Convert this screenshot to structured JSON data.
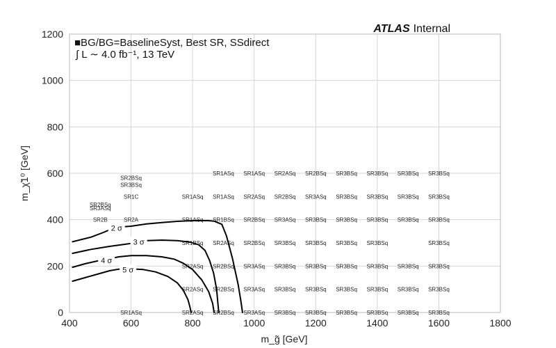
{
  "chart_data": {
    "type": "scatter",
    "title": "",
    "xlabel": "m_g̃ [GeV]",
    "ylabel": "m_χ̃1⁰ [GeV]",
    "xlim": [
      400,
      1800
    ],
    "ylim": [
      0,
      1200
    ],
    "xticks": [
      400,
      600,
      800,
      1000,
      1200,
      1400,
      1600,
      1800
    ],
    "yticks": [
      0,
      200,
      400,
      600,
      800,
      1000,
      1200
    ],
    "grid": true,
    "atlas": {
      "bold": "ATLAS",
      "rest": "Internal"
    },
    "annotation_line1": "■BG/BG=BaselineSyst, Best SR, SSdirect",
    "annotation_line2": "∫ L ∼ 4.0 fb⁻¹, 13 TeV",
    "points": [
      {
        "x": 600,
        "y": 0,
        "label": "SR1ASq"
      },
      {
        "x": 800,
        "y": 0,
        "label": "SR2ASq"
      },
      {
        "x": 900,
        "y": 0,
        "label": "SR2BSq"
      },
      {
        "x": 1000,
        "y": 0,
        "label": "SR3ASq"
      },
      {
        "x": 1100,
        "y": 0,
        "label": "SR3BSq"
      },
      {
        "x": 1200,
        "y": 0,
        "label": "SR3BSq"
      },
      {
        "x": 1300,
        "y": 0,
        "label": "SR3BSq"
      },
      {
        "x": 1400,
        "y": 0,
        "label": "SR3BSq"
      },
      {
        "x": 1500,
        "y": 0,
        "label": "SR3BSq"
      },
      {
        "x": 1600,
        "y": 0,
        "label": "SR3BSq"
      },
      {
        "x": 800,
        "y": 100,
        "label": "SR2ASq"
      },
      {
        "x": 900,
        "y": 100,
        "label": "SR2BSq"
      },
      {
        "x": 1000,
        "y": 100,
        "label": "SR3ASq"
      },
      {
        "x": 1100,
        "y": 100,
        "label": "SR3BSq"
      },
      {
        "x": 1200,
        "y": 100,
        "label": "SR3BSq"
      },
      {
        "x": 1300,
        "y": 100,
        "label": "SR3BSq"
      },
      {
        "x": 1400,
        "y": 100,
        "label": "SR3BSq"
      },
      {
        "x": 1500,
        "y": 100,
        "label": "SR3BSq"
      },
      {
        "x": 1600,
        "y": 100,
        "label": "SR3BSq"
      },
      {
        "x": 800,
        "y": 200,
        "label": "SR2ASq"
      },
      {
        "x": 900,
        "y": 200,
        "label": "SR2BSq"
      },
      {
        "x": 1000,
        "y": 200,
        "label": "SR3ASq"
      },
      {
        "x": 1100,
        "y": 200,
        "label": "SR3BSq"
      },
      {
        "x": 1200,
        "y": 200,
        "label": "SR3BSq"
      },
      {
        "x": 1300,
        "y": 200,
        "label": "SR3BSq"
      },
      {
        "x": 1400,
        "y": 200,
        "label": "SR3BSq"
      },
      {
        "x": 1500,
        "y": 200,
        "label": "SR3BSq"
      },
      {
        "x": 1600,
        "y": 200,
        "label": "SR3BSq"
      },
      {
        "x": 800,
        "y": 300,
        "label": "SR1BSq"
      },
      {
        "x": 900,
        "y": 300,
        "label": "SR2ASq"
      },
      {
        "x": 1000,
        "y": 300,
        "label": "SR2BSq"
      },
      {
        "x": 1100,
        "y": 300,
        "label": "SR3BSq"
      },
      {
        "x": 1200,
        "y": 300,
        "label": "SR3BSq"
      },
      {
        "x": 1300,
        "y": 300,
        "label": "SR3BSq"
      },
      {
        "x": 1400,
        "y": 300,
        "label": "SR3BSq"
      },
      {
        "x": 1600,
        "y": 300,
        "label": "SR3BSq"
      },
      {
        "x": 500,
        "y": 400,
        "label": "SR2B"
      },
      {
        "x": 600,
        "y": 400,
        "label": "SR2A"
      },
      {
        "x": 800,
        "y": 400,
        "label": "SR1ASq"
      },
      {
        "x": 900,
        "y": 400,
        "label": "SR1BSq"
      },
      {
        "x": 1000,
        "y": 400,
        "label": "SR2BSq"
      },
      {
        "x": 1100,
        "y": 400,
        "label": "SR3ASq"
      },
      {
        "x": 1200,
        "y": 400,
        "label": "SR3BSq"
      },
      {
        "x": 1300,
        "y": 400,
        "label": "SR3BSq"
      },
      {
        "x": 1400,
        "y": 400,
        "label": "SR3BSq"
      },
      {
        "x": 1500,
        "y": 400,
        "label": "SR3BSq"
      },
      {
        "x": 1600,
        "y": 400,
        "label": "SR3BSq"
      },
      {
        "x": 500,
        "y": 465,
        "label": "SR2BSq"
      },
      {
        "x": 500,
        "y": 450,
        "label": "SR3ASq"
      },
      {
        "x": 600,
        "y": 500,
        "label": "SR1C"
      },
      {
        "x": 800,
        "y": 500,
        "label": "SR1ASq"
      },
      {
        "x": 900,
        "y": 500,
        "label": "SR1ASq"
      },
      {
        "x": 1000,
        "y": 500,
        "label": "SR2ASq"
      },
      {
        "x": 1100,
        "y": 500,
        "label": "SR2BSq"
      },
      {
        "x": 1200,
        "y": 500,
        "label": "SR3ASq"
      },
      {
        "x": 1300,
        "y": 500,
        "label": "SR3BSq"
      },
      {
        "x": 1400,
        "y": 500,
        "label": "SR3BSq"
      },
      {
        "x": 1500,
        "y": 500,
        "label": "SR3BSq"
      },
      {
        "x": 1600,
        "y": 500,
        "label": "SR3BSq"
      },
      {
        "x": 600,
        "y": 580,
        "label": "SR2BSq"
      },
      {
        "x": 600,
        "y": 550,
        "label": "SR3BSq"
      },
      {
        "x": 900,
        "y": 600,
        "label": "SR1ASq"
      },
      {
        "x": 1000,
        "y": 600,
        "label": "SR1ASq"
      },
      {
        "x": 1100,
        "y": 600,
        "label": "SR2ASq"
      },
      {
        "x": 1200,
        "y": 600,
        "label": "SR2BSq"
      },
      {
        "x": 1300,
        "y": 600,
        "label": "SR3BSq"
      },
      {
        "x": 1400,
        "y": 600,
        "label": "SR3BSq"
      },
      {
        "x": 1500,
        "y": 600,
        "label": "SR3BSq"
      },
      {
        "x": 1600,
        "y": 600,
        "label": "SR3BSq"
      }
    ],
    "contours": [
      {
        "name": "2 σ",
        "label_at": [
          553,
          365
        ],
        "points": [
          [
            410,
            305
          ],
          [
            470,
            325
          ],
          [
            510,
            345
          ],
          [
            540,
            362
          ],
          [
            560,
            368
          ],
          [
            600,
            372
          ],
          [
            650,
            382
          ],
          [
            700,
            388
          ],
          [
            750,
            393
          ],
          [
            800,
            396
          ],
          [
            850,
            396
          ],
          [
            870,
            394
          ],
          [
            895,
            380
          ],
          [
            910,
            330
          ],
          [
            930,
            230
          ],
          [
            948,
            120
          ],
          [
            958,
            40
          ],
          [
            962,
            0
          ]
        ]
      },
      {
        "name": "3 σ",
        "label_at": [
          625,
          305
        ],
        "points": [
          [
            410,
            255
          ],
          [
            470,
            272
          ],
          [
            530,
            285
          ],
          [
            600,
            298
          ],
          [
            650,
            310
          ],
          [
            700,
            312
          ],
          [
            750,
            310
          ],
          [
            790,
            304
          ],
          [
            820,
            292
          ],
          [
            840,
            268
          ],
          [
            855,
            225
          ],
          [
            868,
            170
          ],
          [
            878,
            100
          ],
          [
            882,
            40
          ],
          [
            885,
            0
          ]
        ]
      },
      {
        "name": "4 σ",
        "label_at": [
          520,
          225
        ],
        "points": [
          [
            410,
            195
          ],
          [
            450,
            210
          ],
          [
            490,
            222
          ],
          [
            530,
            232
          ],
          [
            560,
            240
          ],
          [
            600,
            245
          ],
          [
            650,
            245
          ],
          [
            700,
            240
          ],
          [
            740,
            230
          ],
          [
            770,
            212
          ],
          [
            800,
            185
          ],
          [
            830,
            140
          ],
          [
            852,
            90
          ],
          [
            865,
            40
          ],
          [
            870,
            0
          ]
        ]
      },
      {
        "name": "5 σ",
        "label_at": [
          590,
          185
        ],
        "points": [
          [
            410,
            135
          ],
          [
            450,
            150
          ],
          [
            490,
            165
          ],
          [
            530,
            180
          ],
          [
            560,
            187
          ],
          [
            600,
            188
          ],
          [
            640,
            185
          ],
          [
            680,
            175
          ],
          [
            720,
            155
          ],
          [
            750,
            128
          ],
          [
            770,
            95
          ],
          [
            785,
            55
          ],
          [
            792,
            20
          ],
          [
            795,
            0
          ]
        ]
      }
    ]
  }
}
